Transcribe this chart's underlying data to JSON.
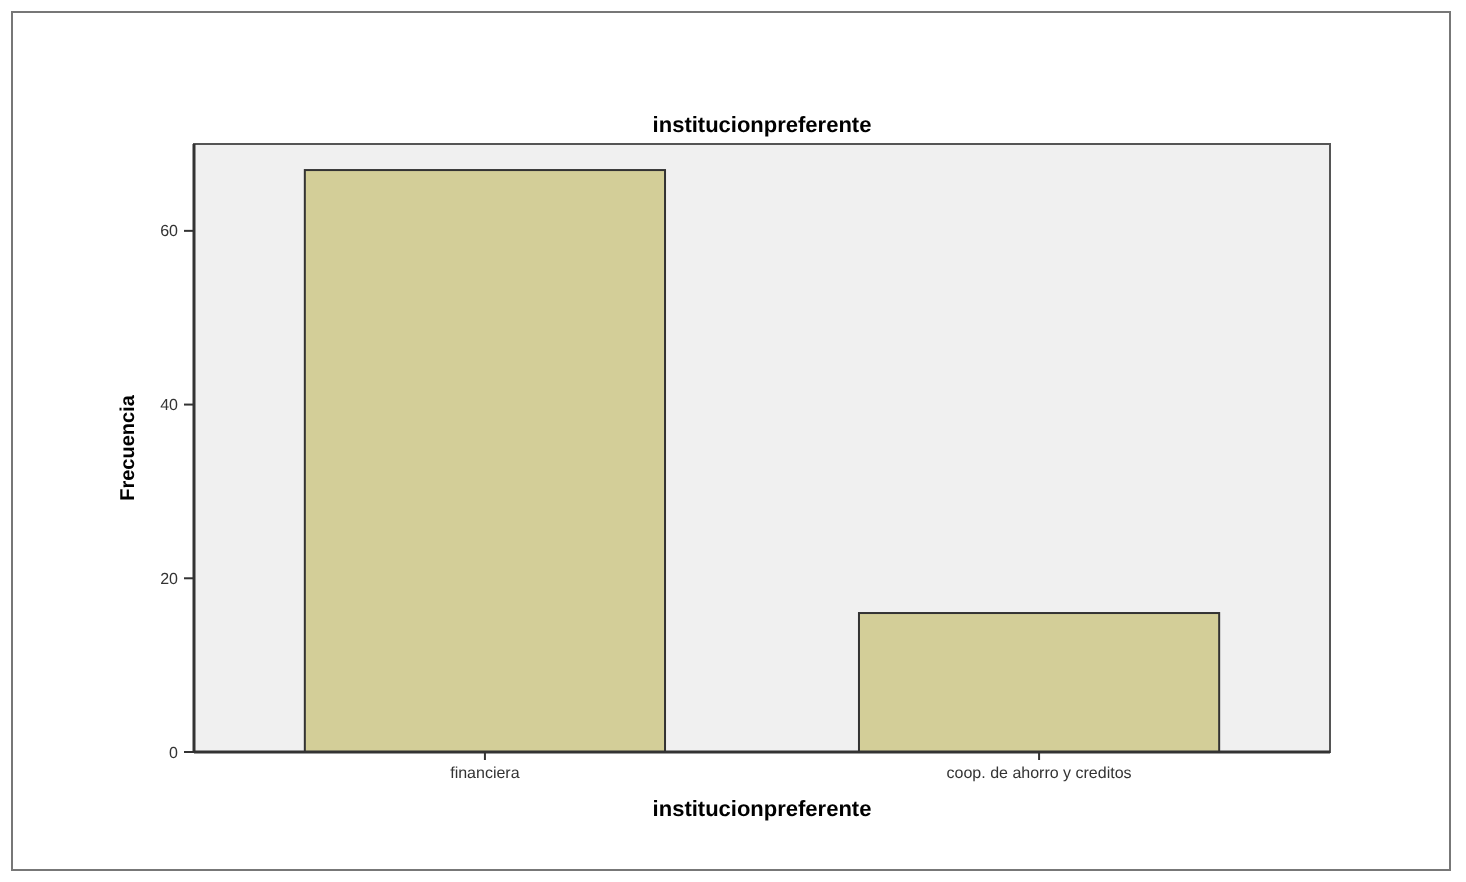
{
  "chart_data": {
    "type": "bar",
    "title": "institucionpreferente",
    "xlabel": "institucionpreferente",
    "ylabel": "Frecuencia",
    "categories": [
      "financiera",
      "coop. de ahorro y creditos"
    ],
    "values": [
      67,
      16
    ],
    "color": "#d3ce98",
    "ylim": [
      0,
      70
    ],
    "yticks": [
      0,
      20,
      40,
      60
    ],
    "grid": false
  }
}
